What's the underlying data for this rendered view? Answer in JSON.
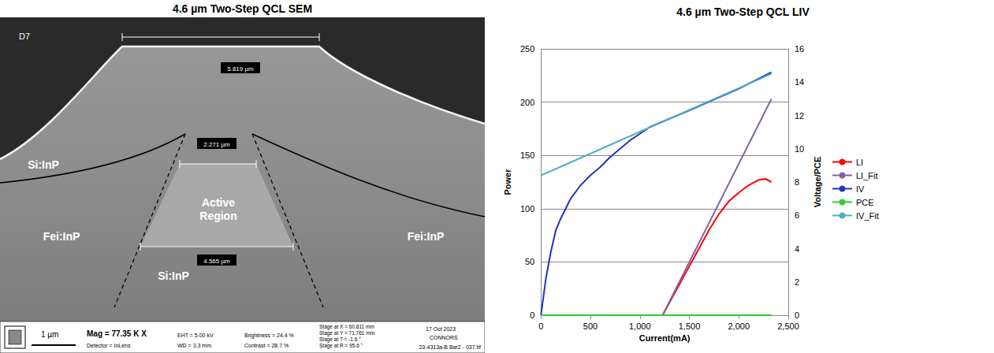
{
  "sem_image": {
    "title": "4.6 µm Two-Step QCL SEM",
    "sample_label": "D7",
    "measurements": {
      "top": "5.819 µm",
      "active_top": "2.271 µm",
      "active_bottom": "4.565 µm"
    },
    "regions": {
      "active": "Active Region",
      "upper_left": "Si:InP",
      "left": "Fei:InP",
      "right": "Fei:InP",
      "bottom": "Si:InP"
    },
    "scale_bar": "1 µm",
    "magnification": "Mag = 77.35 K X",
    "info_bar": [
      "EHT = 5.00 kV",
      "WD = 3.3 mm",
      "Detector = InLens",
      "Brightness = 24.4 %",
      "Contrast = 28.7 %",
      "Stage at X = 60.811 mm",
      "Stage at Y = 71.761 mm",
      "Stage at T = -1.6 °",
      "Stage at R = 95.6 °",
      "17 Oct 2023",
      "CONNORS",
      "23-4313a-B Bar2 - 037.tif"
    ]
  },
  "chart_data": {
    "type": "line",
    "title": "4.6 µm Two-Step QCL LIV",
    "x_label": "Current(mA)",
    "y_label": "Power",
    "y2_label": "Voltage/PCE",
    "xlim": [
      0,
      2500
    ],
    "xticks": [
      0,
      500,
      1000,
      1500,
      2000,
      2500
    ],
    "ylim": [
      0,
      250
    ],
    "yticks": [
      0,
      50,
      100,
      150,
      200,
      250
    ],
    "y2lim": [
      0,
      16
    ],
    "y2ticks": [
      0,
      2,
      4,
      6,
      8,
      10,
      12,
      14,
      16
    ],
    "grid": true,
    "legend": "right",
    "series": [
      {
        "name": "LI",
        "color": "#ff0000",
        "x": [
          0,
          500,
          1000,
          1200,
          1230,
          1300,
          1400,
          1500,
          1600,
          1700,
          1800,
          1900,
          2000,
          2100,
          2200,
          2270,
          2330
        ],
        "values": [
          0,
          0,
          0,
          0,
          0,
          12,
          29,
          46,
          63,
          80,
          95,
          107,
          115,
          122,
          127,
          128,
          125
        ]
      },
      {
        "name": "LI_Fit",
        "color": "#8064a2",
        "x": [
          1230,
          2330
        ],
        "values": [
          0,
          203
        ]
      },
      {
        "name": "IV",
        "color": "#2036b8",
        "axis": "y2",
        "x": [
          0,
          50,
          100,
          150,
          200,
          250,
          300,
          400,
          500,
          600,
          700,
          800,
          900,
          1000,
          1100,
          1500,
          2000,
          2330
        ],
        "values": [
          0,
          2.2,
          3.8,
          5.1,
          5.8,
          6.4,
          7.0,
          7.8,
          8.4,
          8.9,
          9.5,
          10.0,
          10.5,
          10.9,
          11.3,
          12.3,
          13.6,
          14.6
        ]
      },
      {
        "name": "PCE",
        "color": "#33cc33",
        "axis": "y2",
        "x": [
          0,
          1000,
          2330
        ],
        "values": [
          0,
          0,
          0
        ]
      },
      {
        "name": "IV_Fit",
        "color": "#4bacc6",
        "axis": "y2",
        "x": [
          0,
          2330
        ],
        "values": [
          8.4,
          14.5
        ]
      }
    ]
  }
}
